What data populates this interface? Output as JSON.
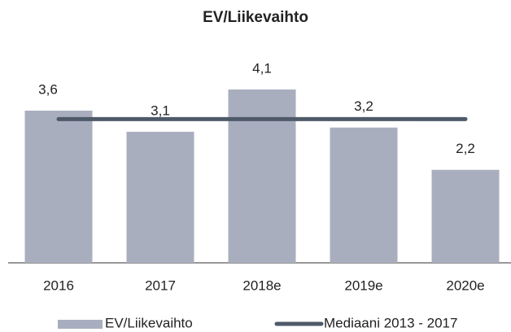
{
  "chart_data": {
    "type": "bar",
    "title": "EV/Liikevaihto",
    "categories": [
      "2016",
      "2017",
      "2018e",
      "2019e",
      "2020e"
    ],
    "series": [
      {
        "name": "EV/Liikevaihto",
        "type": "bar",
        "color": "#a9aebf",
        "values": [
          3.6,
          3.1,
          4.1,
          3.2,
          2.2
        ],
        "value_labels": [
          "3,6",
          "3,1",
          "4,1",
          "3,2",
          "2,2"
        ]
      },
      {
        "name": "Mediaani 2013 - 2017",
        "type": "line",
        "color": "#4f5a69",
        "values": [
          3.4,
          3.4,
          3.4,
          3.4,
          3.4
        ]
      }
    ],
    "legend": "bottom"
  }
}
